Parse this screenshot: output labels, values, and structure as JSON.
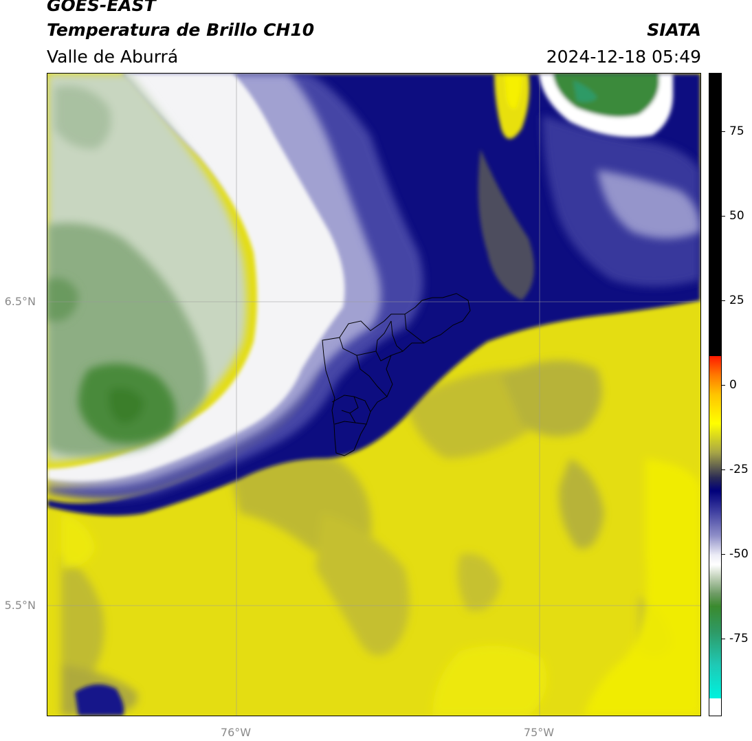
{
  "header": {
    "satellite": "GOES-EAST",
    "product": "Temperatura de Brillo CH10",
    "region": "Valle de Aburrá",
    "organization": "SIATA",
    "timestamp": "2024-12-18 05:49"
  },
  "map": {
    "latitude_labels": [
      "6.5°N",
      "5.5°N"
    ],
    "longitude_labels": [
      "76°W",
      "75°W"
    ],
    "palette": {
      "black": "#000000",
      "red": "#ff1a00",
      "orange": "#ff7a00",
      "yellow": "#f2ee06",
      "olive": "#a8a646",
      "navy": "#00007a",
      "blue": "#3b3b9e",
      "lavender": "#8f8fc8",
      "white": "#ffffff",
      "pale_green": "#c0d0b8",
      "green": "#3a8a2e",
      "cyan": "#00f0dc"
    }
  },
  "colorbar": {
    "tick_labels": [
      "75",
      "50",
      "25",
      "0",
      "-25",
      "-50",
      "-75"
    ]
  }
}
